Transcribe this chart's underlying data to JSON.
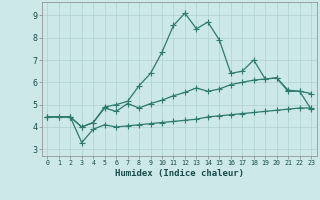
{
  "xlabel": "Humidex (Indice chaleur)",
  "bg_color": "#cce8e8",
  "line_color": "#2d7a6e",
  "grid_color": "#b0d0d0",
  "xlim": [
    -0.5,
    23.5
  ],
  "ylim": [
    2.7,
    9.6
  ],
  "yticks": [
    3,
    4,
    5,
    6,
    7,
    8,
    9
  ],
  "line1_x": [
    0,
    1,
    2,
    3,
    4,
    5,
    6,
    7,
    8,
    9,
    10,
    11,
    12,
    13,
    14,
    15,
    16,
    17,
    18,
    19,
    20,
    21,
    22,
    23
  ],
  "line1_y": [
    4.45,
    4.45,
    4.45,
    4.0,
    4.2,
    4.9,
    5.0,
    5.15,
    5.85,
    6.4,
    7.35,
    8.55,
    9.1,
    8.4,
    8.7,
    7.9,
    6.4,
    6.5,
    7.0,
    6.15,
    6.2,
    5.6,
    5.6,
    4.8
  ],
  "line2_x": [
    0,
    2,
    3,
    4,
    5,
    6,
    7,
    8,
    9,
    10,
    11,
    12,
    13,
    14,
    15,
    16,
    17,
    18,
    19,
    20,
    21,
    22,
    23
  ],
  "line2_y": [
    4.45,
    4.45,
    4.0,
    4.2,
    4.85,
    4.7,
    5.05,
    4.85,
    5.05,
    5.2,
    5.4,
    5.55,
    5.75,
    5.6,
    5.7,
    5.9,
    6.0,
    6.1,
    6.15,
    6.2,
    5.65,
    5.6,
    5.5
  ],
  "line3_x": [
    0,
    1,
    2,
    3,
    4,
    5,
    6,
    7,
    8,
    9,
    10,
    11,
    12,
    13,
    14,
    15,
    16,
    17,
    18,
    19,
    20,
    21,
    22,
    23
  ],
  "line3_y": [
    4.45,
    4.45,
    4.45,
    3.3,
    3.9,
    4.1,
    4.0,
    4.05,
    4.1,
    4.15,
    4.2,
    4.25,
    4.3,
    4.35,
    4.45,
    4.5,
    4.55,
    4.6,
    4.65,
    4.7,
    4.75,
    4.8,
    4.85,
    4.85
  ]
}
